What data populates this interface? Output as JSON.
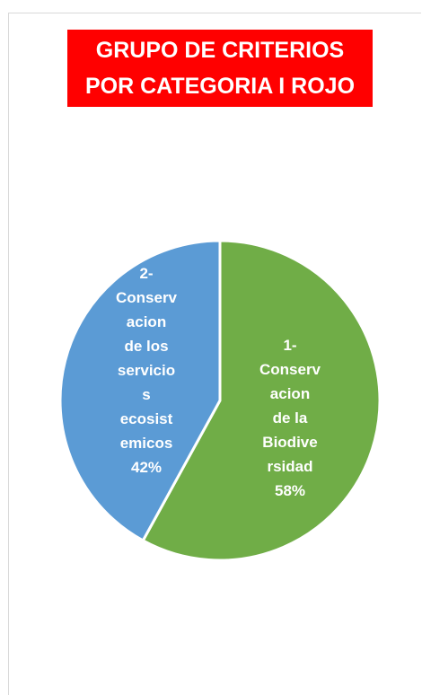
{
  "chart_data": {
    "type": "pie",
    "title_lines": [
      "GRUPO DE CRITERIOS",
      "POR CATEGORIA I ROJO"
    ],
    "slices": [
      {
        "label_lines": [
          "1-",
          "Conserv",
          "acion",
          "de la",
          "Biodive",
          "rsidad",
          "58%"
        ],
        "value": 58,
        "color": "#70ad47"
      },
      {
        "label_lines": [
          "2-",
          "Conserv",
          "acion",
          "de los",
          "servicio",
          "s",
          "ecosist",
          "emicos",
          "42%"
        ],
        "value": 42,
        "color": "#5b9bd5"
      }
    ],
    "title_background": "#ff0000",
    "title_color": "#ffffff",
    "label_color": "#ffffff"
  }
}
